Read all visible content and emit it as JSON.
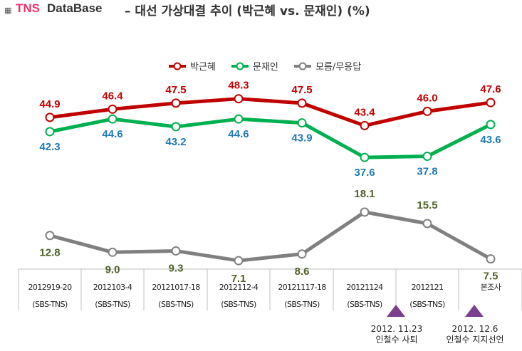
{
  "header": {
    "brand": "TNS",
    "brand2": "DataBase",
    "subtitle": "– 대선 가상대결 추이 (박근혜 vs. 문재인) (%)"
  },
  "chart_data": {
    "type": "line",
    "title": "대선 가상대결 추이 (박근혜 vs. 문재인) (%)",
    "categories": [
      "2012919-20",
      "2012103-4",
      "20121017-18",
      "2012112-4",
      "20121117-18",
      "20121124",
      "2012121",
      "본조사"
    ],
    "category_sub": [
      "(SBS-TNS)",
      "(SBS-TNS)",
      "(SBS-TNS)",
      "(SBS-TNS)",
      "(SBS-TNS)",
      "(SBS-TNS)",
      "(SBS-TNS)",
      ""
    ],
    "series": [
      {
        "name": "박근혜",
        "color": "#c00000",
        "label_color": "#c00000",
        "values": [
          44.9,
          46.4,
          47.5,
          48.3,
          47.5,
          43.4,
          46.0,
          47.6
        ],
        "label_pos": "above"
      },
      {
        "name": "문재인",
        "color": "#00b050",
        "label_color": "#1f78b4",
        "values": [
          42.3,
          44.6,
          43.2,
          44.6,
          43.9,
          37.6,
          37.8,
          43.6
        ],
        "label_pos": "below"
      },
      {
        "name": "모름/무응답",
        "color": "#808080",
        "label_color": "#4f6228",
        "values": [
          12.8,
          9.0,
          9.3,
          7.1,
          8.6,
          18.1,
          15.5,
          7.5
        ],
        "label_pos": "mixed"
      }
    ],
    "legend_position": "top-center",
    "grid": false,
    "annotations": [
      {
        "category_index": 5,
        "lines": [
          "2012. 11.23",
          "인철수 사퇴"
        ],
        "marker_color": "#7b3f8c"
      },
      {
        "category_index": 6,
        "lines": [
          "2012. 12.6",
          "인철수 지지선언"
        ],
        "marker_color": "#7b3f8c"
      }
    ]
  }
}
